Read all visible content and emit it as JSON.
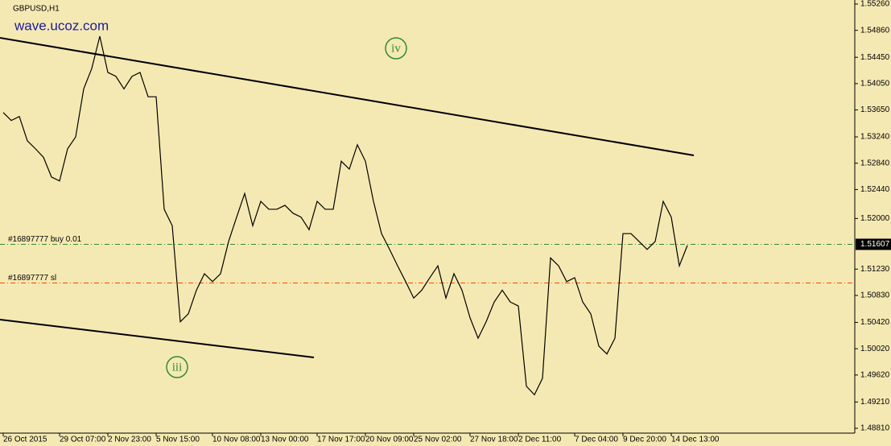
{
  "chart_data": {
    "type": "line",
    "title": "GBPUSD,H1",
    "watermark": "wave.ucoz.com",
    "wave_labels": [
      "iv",
      "iii"
    ],
    "color": "#000000",
    "categories": [
      "26 Oct 2015",
      null,
      null,
      null,
      null,
      null,
      null,
      "29 Oct 07:00",
      null,
      null,
      null,
      null,
      null,
      "2 Nov 23:00",
      null,
      null,
      null,
      null,
      null,
      "5 Nov 15:00",
      null,
      null,
      null,
      null,
      null,
      null,
      "10 Nov 08:00",
      null,
      null,
      null,
      null,
      null,
      "13 Nov 00:00",
      null,
      null,
      null,
      null,
      null,
      null,
      "17 Nov 17:00",
      null,
      null,
      null,
      null,
      null,
      "20 Nov 09:00",
      null,
      null,
      null,
      null,
      null,
      "25 Nov 02:00",
      null,
      null,
      null,
      null,
      null,
      null,
      "27 Nov 18:00",
      null,
      null,
      null,
      null,
      null,
      "2 Dec 11:00",
      null,
      null,
      null,
      null,
      null,
      null,
      "7 Dec 04:00",
      null,
      null,
      null,
      null,
      null,
      "9 Dec 20:00",
      null,
      null,
      null,
      null,
      null,
      "14 Dec 13:00",
      null,
      null
    ],
    "values": [
      1.5361,
      1.5349,
      1.5355,
      1.5318,
      1.5306,
      1.5293,
      1.5263,
      1.5257,
      1.5306,
      1.5324,
      1.5397,
      1.5428,
      1.5477,
      1.5422,
      1.5416,
      1.5397,
      1.5416,
      1.5422,
      1.5385,
      1.5385,
      1.5214,
      1.5189,
      1.5043,
      1.5055,
      1.5091,
      1.5116,
      1.5104,
      1.5116,
      1.5165,
      1.5202,
      1.5238,
      1.5189,
      1.5226,
      1.5214,
      1.5214,
      1.522,
      1.5208,
      1.5202,
      1.5183,
      1.5226,
      1.5214,
      1.5214,
      1.5287,
      1.5275,
      1.5312,
      1.5287,
      1.5226,
      1.5177,
      1.5153,
      1.5128,
      1.5104,
      1.5079,
      1.5091,
      1.511,
      1.5128,
      1.5079,
      1.5116,
      1.5091,
      1.5049,
      1.5018,
      1.5043,
      1.5073,
      1.5091,
      1.5073,
      1.5067,
      1.4945,
      1.4932,
      1.4957,
      1.514,
      1.5128,
      1.5104,
      1.511,
      1.5073,
      1.5055,
      1.5006,
      1.4994,
      1.5018,
      1.5177,
      1.5177,
      1.5165,
      1.5153,
      1.5165,
      1.5226,
      1.5202,
      1.5128,
      1.5159
    ],
    "current_price": 1.51607,
    "orders": [
      {
        "label": "#16897777 buy 0.01",
        "value": 1.51607,
        "color": "#2e8b2e"
      },
      {
        "label": "#16897777 sl",
        "value": 1.5102,
        "color": "#ff4500"
      }
    ],
    "ylim": [
      1.48737,
      1.55321
    ],
    "yticks": [
      {
        "value": 1.5526,
        "label": "1.55260"
      },
      {
        "value": 1.5486,
        "label": "1.54860"
      },
      {
        "value": 1.5445,
        "label": "1.54450"
      },
      {
        "value": 1.5405,
        "label": "1.54050"
      },
      {
        "value": 1.5365,
        "label": "1.53650"
      },
      {
        "value": 1.5324,
        "label": "1.53240"
      },
      {
        "value": 1.5284,
        "label": "1.52840"
      },
      {
        "value": 1.5244,
        "label": "1.52440"
      },
      {
        "value": 1.52,
        "label": "1.52000"
      },
      {
        "value": 1.5123,
        "label": "1.51230"
      },
      {
        "value": 1.5083,
        "label": "1.50830"
      },
      {
        "value": 1.5042,
        "label": "1.50420"
      },
      {
        "value": 1.5002,
        "label": "1.50020"
      },
      {
        "value": 1.4962,
        "label": "1.49620"
      },
      {
        "value": 1.4921,
        "label": "1.49210"
      },
      {
        "value": 1.4881,
        "label": "1.48810"
      }
    ]
  }
}
